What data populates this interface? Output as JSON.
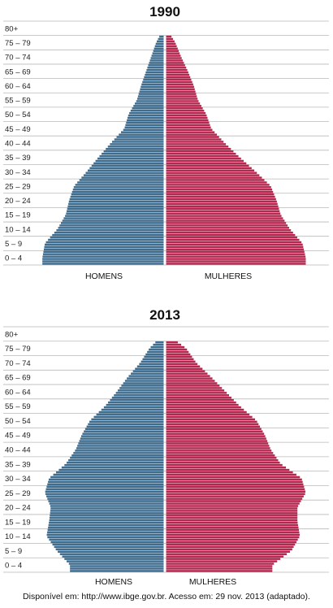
{
  "colors": {
    "men": "#3f6d90",
    "women": "#b5274f",
    "grid": "#b9b9b9",
    "text": "#222222"
  },
  "source_text": "Disponível em: http://www.ibge.gov.br. Acesso em: 29 nov. 2013 (adaptado).",
  "chart_data": [
    {
      "type": "bar",
      "orientation": "horizontal-population-pyramid",
      "title": "1990",
      "categories": [
        "0 – 4",
        "5 – 9",
        "10 – 14",
        "15 – 19",
        "20 – 24",
        "25 – 29",
        "30 – 34",
        "35 – 39",
        "40 – 44",
        "45 – 49",
        "50 – 54",
        "55 – 59",
        "60 – 64",
        "65 – 69",
        "70 – 74",
        "75 – 79",
        "80+"
      ],
      "series": [
        {
          "name": "HOMENS",
          "values": [
            145,
            142,
            127,
            117,
            113,
            107,
            92,
            78,
            63,
            47,
            42,
            32,
            27,
            21,
            15,
            9,
            0
          ]
        },
        {
          "name": "MULHERES",
          "values": [
            167,
            163,
            148,
            137,
            132,
            125,
            107,
            88,
            70,
            54,
            48,
            38,
            33,
            26,
            18,
            11,
            0
          ]
        }
      ],
      "xlabel_left": "HOMENS",
      "xlabel_right": "MULHERES",
      "grid": true
    },
    {
      "type": "bar",
      "orientation": "horizontal-population-pyramid",
      "title": "2013",
      "categories": [
        "0 – 4",
        "5 – 9",
        "10 – 14",
        "15 – 19",
        "20 – 24",
        "25 – 29",
        "30 – 34",
        "35 – 39",
        "40 – 44",
        "45 – 49",
        "50 – 54",
        "55 – 59",
        "60 – 64",
        "65 – 69",
        "70 – 74",
        "75 – 79",
        "80+"
      ],
      "series": [
        {
          "name": "HOMENS",
          "values": [
            112,
            128,
            140,
            137,
            135,
            142,
            137,
            117,
            105,
            98,
            88,
            70,
            56,
            43,
            28,
            17,
            0
          ]
        },
        {
          "name": "MULHERES",
          "values": [
            127,
            150,
            160,
            157,
            157,
            167,
            162,
            137,
            125,
            118,
            108,
            88,
            71,
            54,
            36,
            24,
            0
          ]
        }
      ],
      "xlabel_left": "HOMENS",
      "xlabel_right": "MULHERES",
      "grid": true
    }
  ]
}
